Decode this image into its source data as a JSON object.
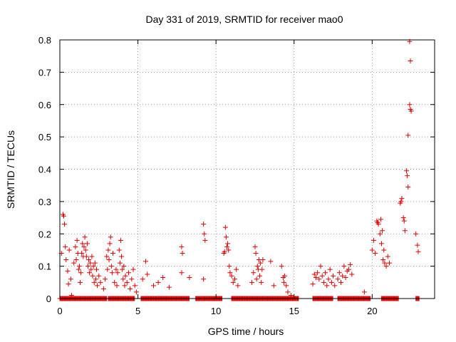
{
  "chart_data": {
    "type": "scatter",
    "title": "Day 331 of 2019, SRMTID for receiver mao0",
    "xlabel": "GPS time / hours",
    "ylabel": "SRMTID / TECUs",
    "xlim": [
      0,
      24
    ],
    "ylim": [
      0,
      0.8
    ],
    "xticks": [
      0,
      5,
      10,
      15,
      20
    ],
    "yticks": [
      0,
      0.1,
      0.2,
      0.3,
      0.4,
      0.5,
      0.6,
      0.7,
      0.8
    ],
    "xtick_labels": [
      "0",
      "5",
      "10",
      "15",
      "20"
    ],
    "ytick_labels": [
      "0",
      "0.1",
      "0.2",
      "0.3",
      "0.4",
      "0.5",
      "0.6",
      "0.7",
      "0.8"
    ],
    "grid": true,
    "marker": "+",
    "color": "#e00000",
    "series": [
      {
        "name": "SRMTID",
        "points": [
          [
            0.1,
            0.14
          ],
          [
            0.2,
            0.26
          ],
          [
            0.25,
            0.255
          ],
          [
            0.3,
            0.23
          ],
          [
            0.35,
            0.16
          ],
          [
            0.4,
            0.12
          ],
          [
            0.5,
            0.085
          ],
          [
            0.55,
            0.045
          ],
          [
            0.6,
            0.15
          ],
          [
            0.7,
            0.06
          ],
          [
            0.75,
            0.01
          ],
          [
            0.9,
            0.11
          ],
          [
            1.0,
            0.16
          ],
          [
            1.05,
            0.12
          ],
          [
            1.1,
            0.18
          ],
          [
            1.15,
            0.14
          ],
          [
            1.2,
            0.09
          ],
          [
            1.25,
            0.1
          ],
          [
            1.3,
            0.05
          ],
          [
            1.35,
            0.08
          ],
          [
            1.4,
            0.14
          ],
          [
            1.45,
            0.17
          ],
          [
            1.5,
            0.13
          ],
          [
            1.55,
            0.16
          ],
          [
            1.6,
            0.19
          ],
          [
            1.65,
            0.15
          ],
          [
            1.7,
            0.13
          ],
          [
            1.75,
            0.17
          ],
          [
            1.8,
            0.1
          ],
          [
            1.85,
            0.12
          ],
          [
            1.9,
            0.08
          ],
          [
            1.95,
            0.11
          ],
          [
            2.0,
            0.09
          ],
          [
            2.05,
            0.13
          ],
          [
            2.1,
            0.07
          ],
          [
            2.15,
            0.1
          ],
          [
            2.2,
            0.05
          ],
          [
            2.25,
            0.11
          ],
          [
            2.3,
            0.06
          ],
          [
            2.35,
            0.09
          ],
          [
            2.4,
            0.04
          ],
          [
            2.5,
            0.07
          ],
          [
            2.6,
            0.05
          ],
          [
            2.8,
            0.03
          ],
          [
            2.9,
            0.06
          ],
          [
            3.0,
            0.13
          ],
          [
            3.05,
            0.09
          ],
          [
            3.1,
            0.15
          ],
          [
            3.15,
            0.12
          ],
          [
            3.2,
            0.17
          ],
          [
            3.25,
            0.19
          ],
          [
            3.3,
            0.1
          ],
          [
            3.35,
            0.08
          ],
          [
            3.4,
            0.14
          ],
          [
            3.5,
            0.05
          ],
          [
            3.6,
            0.09
          ],
          [
            3.65,
            0.04
          ],
          [
            3.7,
            0.08
          ],
          [
            3.8,
            0.15
          ],
          [
            3.85,
            0.11
          ],
          [
            3.9,
            0.18
          ],
          [
            3.95,
            0.13
          ],
          [
            4.0,
            0.09
          ],
          [
            4.05,
            0.06
          ],
          [
            4.1,
            0.1
          ],
          [
            4.15,
            0.04
          ],
          [
            4.2,
            0.07
          ],
          [
            4.3,
            0.05
          ],
          [
            4.4,
            0.08
          ],
          [
            4.5,
            0.03
          ],
          [
            4.6,
            0.06
          ],
          [
            4.7,
            0.09
          ],
          [
            4.8,
            0.04
          ],
          [
            4.9,
            0.02
          ],
          [
            5.3,
            0.06
          ],
          [
            5.5,
            0.115
          ],
          [
            5.6,
            0.075
          ],
          [
            6.0,
            0.04
          ],
          [
            6.3,
            0.05
          ],
          [
            6.6,
            0.065
          ],
          [
            7.0,
            0.035
          ],
          [
            7.8,
            0.16
          ],
          [
            7.85,
            0.14
          ],
          [
            7.8,
            0.08
          ],
          [
            8.3,
            0.065
          ],
          [
            9.2,
            0.23
          ],
          [
            9.25,
            0.2
          ],
          [
            9.3,
            0.18
          ],
          [
            9.2,
            0.06
          ],
          [
            10.5,
            0.14
          ],
          [
            10.55,
            0.145
          ],
          [
            10.6,
            0.22
          ],
          [
            10.65,
            0.19
          ],
          [
            10.7,
            0.16
          ],
          [
            10.75,
            0.17
          ],
          [
            10.8,
            0.15
          ],
          [
            10.85,
            0.1
          ],
          [
            10.9,
            0.08
          ],
          [
            11.0,
            0.07
          ],
          [
            11.1,
            0.05
          ],
          [
            11.2,
            0.06
          ],
          [
            11.3,
            0.09
          ],
          [
            11.4,
            0.04
          ],
          [
            12.3,
            0.05
          ],
          [
            12.4,
            0.08
          ],
          [
            12.5,
            0.16
          ],
          [
            12.55,
            0.14
          ],
          [
            12.6,
            0.06
          ],
          [
            12.65,
            0.1
          ],
          [
            12.7,
            0.09
          ],
          [
            12.75,
            0.12
          ],
          [
            12.8,
            0.07
          ],
          [
            12.85,
            0.11
          ],
          [
            12.9,
            0.05
          ],
          [
            12.95,
            0.09
          ],
          [
            13.0,
            0.12
          ],
          [
            13.5,
            0.115
          ],
          [
            13.7,
            0.04
          ],
          [
            14.2,
            0.1
          ],
          [
            14.3,
            0.065
          ],
          [
            14.35,
            0.05
          ],
          [
            14.4,
            0.07
          ],
          [
            14.5,
            0.04
          ],
          [
            14.6,
            0.02
          ],
          [
            14.8,
            0.01
          ],
          [
            16.2,
            0.045
          ],
          [
            16.3,
            0.075
          ],
          [
            16.4,
            0.065
          ],
          [
            16.5,
            0.08
          ],
          [
            16.6,
            0.06
          ],
          [
            16.7,
            0.1
          ],
          [
            16.8,
            0.07
          ],
          [
            16.9,
            0.05
          ],
          [
            17.0,
            0.08
          ],
          [
            17.1,
            0.04
          ],
          [
            17.2,
            0.06
          ],
          [
            17.3,
            0.09
          ],
          [
            17.4,
            0.05
          ],
          [
            17.5,
            0.07
          ],
          [
            17.6,
            0.04
          ],
          [
            17.8,
            0.06
          ],
          [
            17.9,
            0.08
          ],
          [
            18.0,
            0.05
          ],
          [
            18.1,
            0.07
          ],
          [
            18.2,
            0.1
          ],
          [
            18.3,
            0.065
          ],
          [
            18.4,
            0.085
          ],
          [
            18.5,
            0.09
          ],
          [
            18.6,
            0.105
          ],
          [
            18.7,
            0.075
          ],
          [
            19.5,
            0.02
          ],
          [
            20.0,
            0.15
          ],
          [
            20.1,
            0.18
          ],
          [
            20.2,
            0.14
          ],
          [
            20.3,
            0.24
          ],
          [
            20.35,
            0.235
          ],
          [
            20.4,
            0.23
          ],
          [
            20.5,
            0.2
          ],
          [
            20.55,
            0.245
          ],
          [
            20.6,
            0.17
          ],
          [
            20.65,
            0.21
          ],
          [
            20.7,
            0.12
          ],
          [
            20.75,
            0.15
          ],
          [
            20.8,
            0.11
          ],
          [
            20.9,
            0.1
          ],
          [
            21.0,
            0.13
          ],
          [
            21.1,
            0.11
          ],
          [
            21.8,
            0.295
          ],
          [
            21.85,
            0.3
          ],
          [
            21.9,
            0.31
          ],
          [
            22.0,
            0.25
          ],
          [
            22.05,
            0.24
          ],
          [
            22.1,
            0.21
          ],
          [
            22.2,
            0.395
          ],
          [
            22.25,
            0.38
          ],
          [
            22.3,
            0.345
          ],
          [
            22.3,
            0.505
          ],
          [
            22.4,
            0.6
          ],
          [
            22.45,
            0.585
          ],
          [
            22.5,
            0.58
          ],
          [
            22.4,
            0.795
          ],
          [
            22.45,
            0.735
          ],
          [
            22.8,
            0.2
          ],
          [
            22.9,
            0.165
          ],
          [
            22.95,
            0.145
          ],
          [
            23.0,
            0.0
          ]
        ],
        "zero_ranges": [
          [
            0.0,
            3.0
          ],
          [
            3.1,
            4.8
          ],
          [
            5.2,
            8.3
          ],
          [
            8.7,
            10.4
          ],
          [
            11.0,
            15.3
          ],
          [
            16.2,
            17.5
          ],
          [
            17.8,
            19.9
          ],
          [
            20.6,
            21.7
          ],
          [
            22.8,
            23.0
          ]
        ]
      }
    ]
  }
}
